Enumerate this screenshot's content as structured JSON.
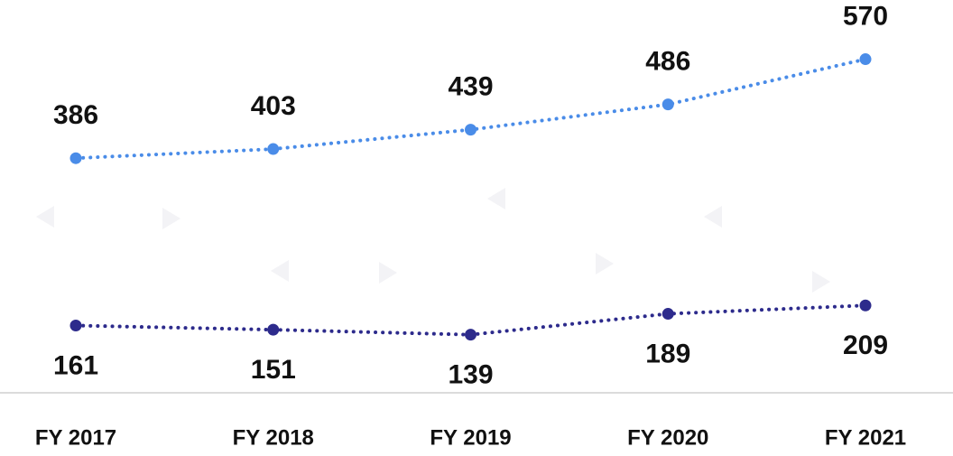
{
  "chart_data": {
    "type": "line",
    "categories": [
      "FY 2017",
      "FY 2018",
      "FY 2019",
      "FY 2020",
      "FY 2021"
    ],
    "series": [
      {
        "color": "#4a8ce8",
        "values": [
          386,
          403,
          439,
          486,
          570
        ]
      },
      {
        "color": "#2d2b8c",
        "values": [
          161,
          151,
          139,
          189,
          209
        ],
        "axis": "y2"
      }
    ],
    "ylim": [
      -50,
      680
    ],
    "y2lim": [
      0,
      940
    ]
  }
}
